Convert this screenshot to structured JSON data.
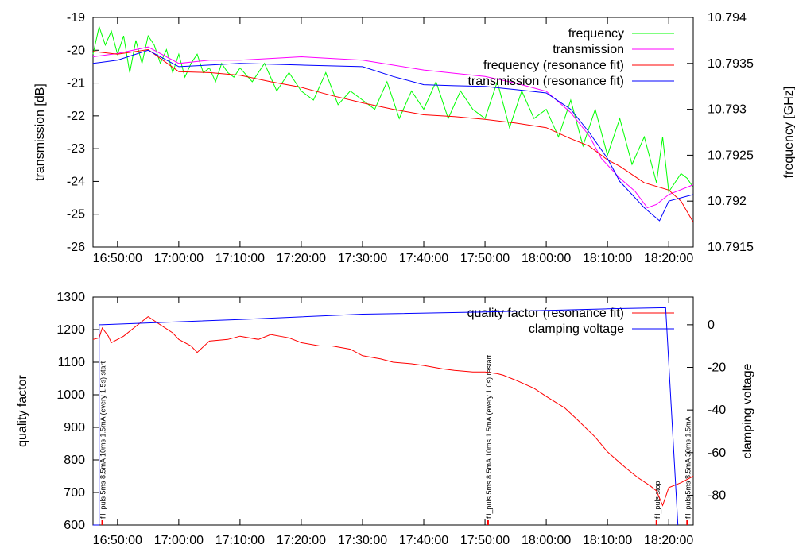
{
  "x_ticks": [
    "16:50:00",
    "17:00:00",
    "17:10:00",
    "17:20:00",
    "17:30:00",
    "17:40:00",
    "17:50:00",
    "18:00:00",
    "18:10:00",
    "18:20:00"
  ],
  "chart_data": [
    {
      "type": "line",
      "x_unit": "minutes after 16:50:00",
      "xlim": [
        -4,
        94
      ],
      "ylabel": "transmission [dB]",
      "ylim": [
        -26,
        -19
      ],
      "yticks": [
        "-19",
        "-20",
        "-21",
        "-22",
        "-23",
        "-24",
        "-25",
        "-26"
      ],
      "y2label": "frequency [GHz]",
      "y2lim": [
        10.7915,
        10.794
      ],
      "y2ticks": [
        "10.794",
        "10.7935",
        "10.793",
        "10.7925",
        "10.792",
        "10.7915"
      ],
      "legend_position": "top-right",
      "series": [
        {
          "name": "frequency",
          "axis": "y2",
          "color": "#00ff00",
          "x": [
            -4,
            -3,
            -2,
            -1,
            0,
            1,
            2,
            3,
            4,
            5,
            6,
            7,
            8,
            9,
            10,
            11,
            12,
            13,
            14,
            15,
            16,
            17,
            18,
            19,
            20,
            22,
            24,
            26,
            28,
            30,
            32,
            34,
            36,
            38,
            40,
            42,
            44,
            46,
            48,
            50,
            52,
            54,
            56,
            58,
            60,
            62,
            64,
            66,
            68,
            70,
            72,
            74,
            76,
            78,
            80,
            82,
            84,
            86,
            88,
            89,
            90,
            92,
            93,
            94
          ],
          "y": [
            10.7936,
            10.7939,
            10.7937,
            10.79385,
            10.7936,
            10.7938,
            10.7934,
            10.79375,
            10.7935,
            10.7938,
            10.7937,
            10.7935,
            10.79365,
            10.7934,
            10.7936,
            10.79335,
            10.7935,
            10.7936,
            10.7934,
            10.79345,
            10.7933,
            10.7935,
            10.7934,
            10.79335,
            10.79345,
            10.7933,
            10.7935,
            10.7932,
            10.7934,
            10.7932,
            10.7931,
            10.7934,
            10.79305,
            10.7932,
            10.7931,
            10.793,
            10.7933,
            10.7929,
            10.7932,
            10.793,
            10.7933,
            10.7929,
            10.7932,
            10.793,
            10.7929,
            10.7933,
            10.7928,
            10.7932,
            10.7929,
            10.793,
            10.7927,
            10.7931,
            10.7926,
            10.793,
            10.7925,
            10.7929,
            10.7924,
            10.7927,
            10.7922,
            10.7927,
            10.7921,
            10.7923,
            10.79225,
            10.79215
          ]
        },
        {
          "name": "transmission",
          "axis": "y",
          "color": "#ff00ff",
          "x": [
            -4,
            0,
            5,
            10,
            15,
            20,
            30,
            40,
            50,
            55,
            60,
            65,
            70,
            74,
            77,
            79,
            82,
            84.5,
            86.5,
            88,
            90,
            94
          ],
          "y": [
            -20.2,
            -20.1,
            -19.9,
            -20.4,
            -20.3,
            -20.3,
            -20.2,
            -20.3,
            -20.6,
            -20.7,
            -20.8,
            -21.0,
            -21.25,
            -21.9,
            -22.6,
            -23.3,
            -23.9,
            -24.3,
            -24.8,
            -24.7,
            -24.4,
            -24.1
          ]
        },
        {
          "name": "frequency (resonance fit)",
          "axis": "y2",
          "color": "#ff0000",
          "x": [
            -4,
            0,
            5,
            10,
            15,
            20,
            25,
            30,
            35,
            40,
            45,
            50,
            55,
            60,
            65,
            70,
            74,
            77,
            80,
            82,
            86,
            90,
            92,
            94
          ],
          "y": [
            10.79363,
            10.7936,
            10.79365,
            10.79341,
            10.7934,
            10.79337,
            10.7933,
            10.79324,
            10.79315,
            10.79307,
            10.793,
            10.79294,
            10.79292,
            10.79289,
            10.79285,
            10.7928,
            10.79268,
            10.7926,
            10.79245,
            10.79238,
            10.7922,
            10.79212,
            10.792,
            10.79177
          ]
        },
        {
          "name": "transmission (resonance fit)",
          "axis": "y",
          "color": "#0000ff",
          "x": [
            -4,
            0,
            5,
            10,
            15,
            20,
            30,
            40,
            45,
            50,
            55,
            60,
            65,
            70,
            74,
            77,
            80,
            82,
            84,
            86,
            88.5,
            90,
            94
          ],
          "y": [
            -20.4,
            -20.3,
            -20.0,
            -20.5,
            -20.45,
            -20.4,
            -20.45,
            -20.5,
            -20.8,
            -21.05,
            -21.08,
            -21.1,
            -21.2,
            -21.3,
            -21.8,
            -22.5,
            -23.3,
            -24.0,
            -24.4,
            -24.8,
            -25.2,
            -24.6,
            -24.4
          ]
        }
      ]
    },
    {
      "type": "line",
      "x_unit": "minutes after 16:50:00",
      "xlim": [
        -4,
        94
      ],
      "ylabel": "quality factor",
      "ylim": [
        600,
        1300
      ],
      "yticks": [
        "1300",
        "1200",
        "1100",
        "1000",
        "900",
        "800",
        "700",
        "600"
      ],
      "y2label": "clamping voltage",
      "y2lim": [
        -94,
        13
      ],
      "y2ticks": [
        "0",
        "-20",
        "-40",
        "-60",
        "-80"
      ],
      "legend_position": "top-right",
      "series": [
        {
          "name": "quality factor (resonance fit)",
          "axis": "y",
          "color": "#ff0000",
          "x": [
            -4,
            -3,
            -2.5,
            -1.5,
            -1,
            1,
            3,
            5,
            7,
            9,
            10,
            12,
            13,
            15,
            18,
            20,
            23,
            25,
            28,
            30,
            33,
            35,
            38,
            40,
            43,
            45,
            48,
            50,
            53,
            55,
            58,
            60,
            62,
            63,
            65,
            68,
            70,
            73,
            75,
            78,
            80,
            83,
            85,
            87,
            88,
            89,
            90,
            92,
            94
          ],
          "y": [
            1170,
            1175,
            1205,
            1180,
            1160,
            1180,
            1210,
            1240,
            1215,
            1190,
            1170,
            1150,
            1130,
            1165,
            1170,
            1180,
            1170,
            1185,
            1175,
            1160,
            1150,
            1150,
            1140,
            1120,
            1110,
            1100,
            1095,
            1090,
            1080,
            1075,
            1070,
            1070,
            1065,
            1060,
            1045,
            1020,
            995,
            960,
            925,
            870,
            825,
            775,
            745,
            720,
            705,
            660,
            715,
            730,
            750
          ]
        },
        {
          "name": "clamping voltage",
          "axis": "y2",
          "color": "#0000ff",
          "x": [
            -4,
            -3,
            -3,
            20,
            40,
            60,
            80,
            89.5,
            91.5
          ],
          "y": [
            -94,
            -94,
            0,
            2.5,
            5,
            6,
            7.5,
            8,
            -94
          ]
        }
      ],
      "annotations": [
        {
          "x": -2.5,
          "text": "fil_puls 5ms 8.5mA 10ms 1.5mA (every 1.5s) start"
        },
        {
          "x": 60.5,
          "text": "fil_puls 5ms 8.5mA 10ms 1.5mA (every 1.0s) restart"
        },
        {
          "x": 88,
          "text": "fil_puls stop"
        },
        {
          "x": 93,
          "text": "fil_puls 5ms 8.5mA 30ms 1.5mA"
        }
      ]
    }
  ]
}
